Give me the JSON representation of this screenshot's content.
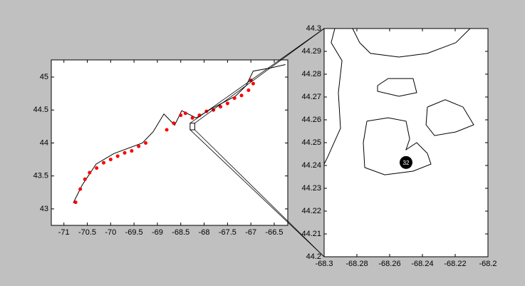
{
  "chart_data": [
    {
      "type": "line",
      "xlim": [
        -71.27,
        -66.21
      ],
      "ylim": [
        42.75,
        45.26
      ],
      "xticks": [
        -71,
        -70.5,
        -70,
        -69.5,
        -69,
        -68.5,
        -68,
        -67.5,
        -67,
        -66.5
      ],
      "yticks": [
        43,
        43.5,
        44,
        44.5,
        45
      ],
      "series": [
        {
          "color": "#000000",
          "marker": "none",
          "x": [
            -70.8,
            -70.61,
            -70.31,
            -69.93,
            -69.32,
            -69.09,
            -68.86,
            -68.63,
            -68.48,
            -68.17,
            -67.79,
            -67.33,
            -67.1,
            -66.95,
            -66.57,
            -66.26
          ],
          "values": [
            43.09,
            43.36,
            43.68,
            43.84,
            44.0,
            44.17,
            44.44,
            44.27,
            44.49,
            44.38,
            44.54,
            44.71,
            44.87,
            45.09,
            45.14,
            45.19
          ]
        },
        {
          "color": "#ff0000",
          "marker": "dot",
          "x": [
            -70.75,
            -70.65,
            -70.55,
            -70.45,
            -70.3,
            -70.15,
            -70.0,
            -69.85,
            -69.7,
            -69.55,
            -69.4,
            -69.25,
            -68.8,
            -68.65,
            -68.5,
            -68.4,
            -68.25,
            -68.1,
            -67.95,
            -67.8,
            -67.65,
            -67.5,
            -67.35,
            -67.2,
            -67.05,
            -66.95,
            -67.0
          ],
          "values": [
            43.1,
            43.3,
            43.45,
            43.55,
            43.62,
            43.7,
            43.75,
            43.8,
            43.85,
            43.88,
            43.95,
            44.0,
            44.2,
            44.3,
            44.42,
            44.45,
            44.38,
            44.42,
            44.48,
            44.5,
            44.55,
            44.6,
            44.68,
            44.72,
            44.8,
            44.9,
            44.95
          ]
        }
      ]
    },
    {
      "type": "line",
      "xlim": [
        -68.3,
        -68.2
      ],
      "ylim": [
        44.2,
        44.3
      ],
      "xticks": [
        -68.3,
        -68.28,
        -68.26,
        -68.24,
        -68.22,
        -68.2
      ],
      "yticks": [
        44.2,
        44.21,
        44.22,
        44.23,
        44.24,
        44.25,
        44.26,
        44.27,
        44.28,
        44.29,
        44.3
      ],
      "series": [
        {
          "color": "#000000",
          "marker": "none",
          "x": [
            -68.2935,
            -68.2957,
            -68.2891,
            -68.2913,
            -68.29,
            -68.2978,
            -68.3,
            null,
            -68.2826,
            -68.2783,
            -68.2717,
            -68.2543,
            -68.237,
            -68.2196,
            -68.2109,
            null,
            -68.2674,
            -68.2609,
            -68.2457,
            -68.2435,
            -68.2543,
            -68.2674,
            -68.2674,
            null,
            -68.2739,
            -68.2609,
            -68.25,
            -68.2478,
            -68.25,
            -68.2435,
            -68.237,
            -68.2348,
            -68.2457,
            -68.263,
            -68.2752,
            -68.2761,
            -68.2739,
            null,
            -68.237,
            -68.2261,
            -68.2152,
            -68.2087,
            -68.2196,
            -68.2326,
            -68.2378,
            -68.237
          ],
          "values": [
            44.3,
            44.2938,
            44.2859,
            44.2719,
            44.2563,
            44.2438,
            44.2406,
            null,
            44.3,
            44.2938,
            44.2891,
            44.2875,
            44.2891,
            44.2938,
            44.3,
            null,
            44.275,
            44.2781,
            44.2781,
            44.2719,
            44.2703,
            44.2725,
            44.275,
            null,
            44.2594,
            44.2609,
            44.2594,
            44.2516,
            44.2469,
            44.25,
            44.2453,
            44.2406,
            44.2375,
            44.2359,
            44.2391,
            44.25,
            44.2594,
            null,
            44.2656,
            44.2688,
            44.2656,
            44.2578,
            44.2547,
            44.2531,
            44.2578,
            44.2656
          ]
        }
      ],
      "marker": {
        "x": -68.25,
        "y": 44.2413,
        "label": 32
      }
    }
  ]
}
